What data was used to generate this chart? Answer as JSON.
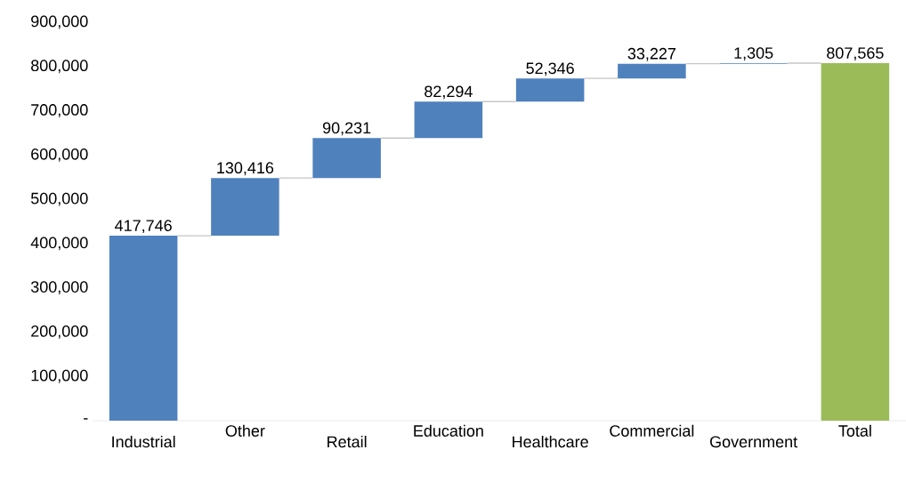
{
  "chart_data": {
    "type": "bar",
    "categories": [
      "Industrial",
      "Other",
      "Retail",
      "Education",
      "Healthcare",
      "Commercial",
      "Government",
      "Total"
    ],
    "values": [
      417746,
      130416,
      90231,
      82294,
      52346,
      33227,
      1305,
      807565
    ],
    "base": [
      0,
      417746,
      548162,
      638393,
      720687,
      773033,
      806260,
      0
    ],
    "colors": [
      "#4f81bd",
      "#4f81bd",
      "#4f81bd",
      "#4f81bd",
      "#4f81bd",
      "#4f81bd",
      "#4f81bd",
      "#9bbb59"
    ],
    "value_labels": [
      "417,746",
      "130,416",
      "90,231",
      "82,294",
      "52,346",
      "33,227",
      "1,305",
      "807,565"
    ],
    "ylim": [
      0,
      900000
    ],
    "yticks": [
      {
        "value": 0,
        "label": "-"
      },
      {
        "value": 100000,
        "label": "100,000"
      },
      {
        "value": 200000,
        "label": "200,000"
      },
      {
        "value": 300000,
        "label": "300,000"
      },
      {
        "value": 400000,
        "label": "400,000"
      },
      {
        "value": 500000,
        "label": "500,000"
      },
      {
        "value": 600000,
        "label": "600,000"
      },
      {
        "value": 700000,
        "label": "700,000"
      },
      {
        "value": 800000,
        "label": "800,000"
      },
      {
        "value": 900000,
        "label": "900,000"
      }
    ]
  }
}
